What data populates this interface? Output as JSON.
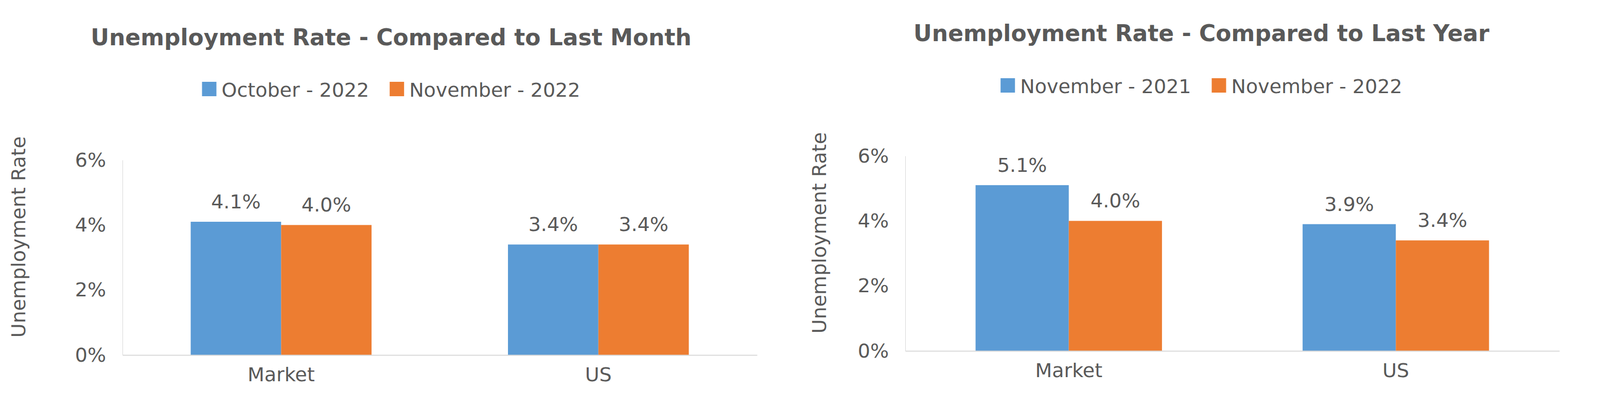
{
  "chart_data": [
    {
      "type": "bar",
      "title": "Unemployment Rate - Compared to Last Month",
      "y_label": "Unemployment Rate",
      "categories": [
        "Market",
        "US"
      ],
      "series": [
        {
          "name": "October - 2022",
          "color": "#5b9bd5",
          "values": [
            4.1,
            3.4
          ],
          "value_labels": [
            "4.1%",
            "3.4%"
          ]
        },
        {
          "name": "November - 2022",
          "color": "#ed7d31",
          "values": [
            4.0,
            3.4
          ],
          "value_labels": [
            "4.0%",
            "3.4%"
          ]
        }
      ],
      "ylim": [
        0,
        6
      ],
      "yticks": [
        {
          "value": 0,
          "label": "0%"
        },
        {
          "value": 2,
          "label": "2%"
        },
        {
          "value": 4,
          "label": "4%"
        },
        {
          "value": 6,
          "label": "6%"
        }
      ],
      "grid": false,
      "legend": "top",
      "data_labels": true
    },
    {
      "type": "bar",
      "title": "Unemployment Rate - Compared to Last Year",
      "y_label": "Unemployment Rate",
      "categories": [
        "Market",
        "US"
      ],
      "series": [
        {
          "name": "November - 2021",
          "color": "#5b9bd5",
          "values": [
            5.1,
            3.9
          ],
          "value_labels": [
            "5.1%",
            "3.9%"
          ]
        },
        {
          "name": "November - 2022",
          "color": "#ed7d31",
          "values": [
            4.0,
            3.4
          ],
          "value_labels": [
            "4.0%",
            "3.4%"
          ]
        }
      ],
      "ylim": [
        0,
        6
      ],
      "yticks": [
        {
          "value": 0,
          "label": "0%"
        },
        {
          "value": 2,
          "label": "2%"
        },
        {
          "value": 4,
          "label": "4%"
        },
        {
          "value": 6,
          "label": "6%"
        }
      ],
      "grid": false,
      "legend": "top",
      "data_labels": true
    }
  ]
}
